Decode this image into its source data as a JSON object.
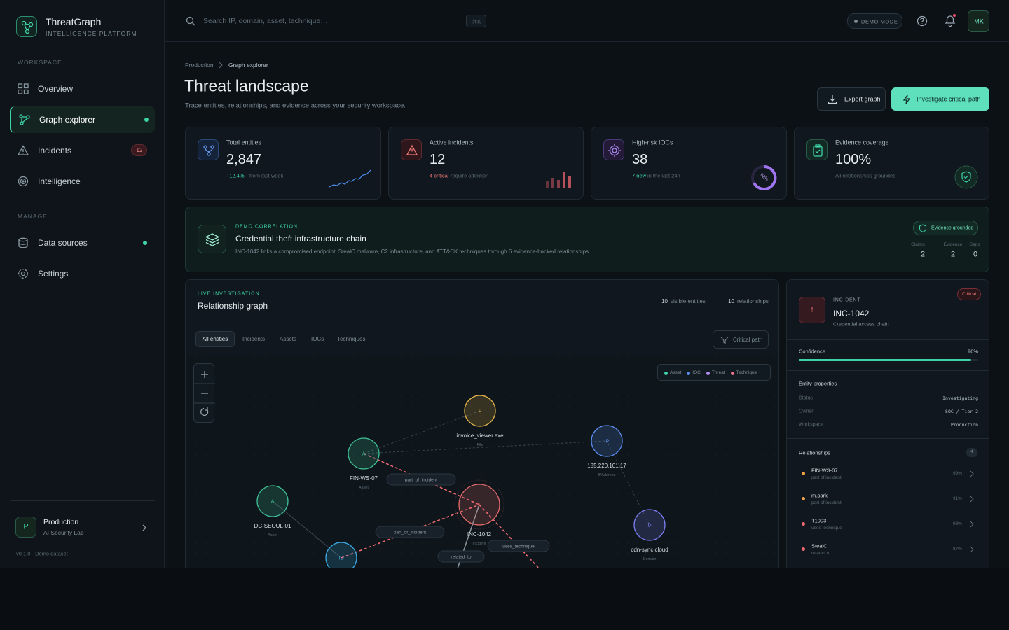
{
  "sidebar": {
    "brand": {
      "name": "ThreatGraph",
      "tagline": "INTELLIGENCE PLATFORM"
    },
    "sections": [
      {
        "label": "WORKSPACE",
        "items": [
          {
            "label": "Overview"
          },
          {
            "label": "Graph explorer"
          },
          {
            "label": "Incidents",
            "badge": 12
          },
          {
            "label": "Intelligence"
          }
        ]
      },
      {
        "label": "MANAGE",
        "items": [
          {
            "label": "Data sources"
          },
          {
            "label": "Settings"
          }
        ]
      }
    ],
    "workspace": {
      "initial": "P",
      "name": "Production",
      "org": "AI Security Lab"
    },
    "version": "v0.1.0 · Demo dataset"
  },
  "topbar": {
    "search_placeholder": "Search IP, domain, asset, technique…",
    "shortcut": "⌘K",
    "mode": "DEMO MODE",
    "avatar": "MK"
  },
  "header": {
    "breadcrumb": [
      "Production",
      "Graph explorer"
    ],
    "title": "Threat landscape",
    "subtitle": "Trace entities, relationships, and evidence across your security workspace.",
    "actions": [
      "Export graph",
      "Investigate critical path"
    ]
  },
  "stats": [
    {
      "label": "Total entities",
      "value": "2,847",
      "highlight": "+12.4%",
      "note": "from last week"
    },
    {
      "label": "Active incidents",
      "value": "12",
      "highlight": "4 critical",
      "note": "require attention"
    },
    {
      "label": "High-risk IOCs",
      "value": "38",
      "highlight": "7 new",
      "note": "in the last 24h",
      "ring": "62%"
    },
    {
      "label": "Evidence coverage",
      "value": "100%",
      "note": "All relationships grounded"
    }
  ],
  "correlation": {
    "eyebrow": "DEMO CORRELATION",
    "title": "Credential theft infrastructure chain",
    "description": "INC-1042 links a compromised endpoint, StealC malware, C2 infrastructure, and ATT&CK techniques through 6 evidence-backed relationships.",
    "badge": "Evidence grounded",
    "metrics": [
      {
        "label": "Claims",
        "value": 2
      },
      {
        "label": "Evidence",
        "value": 2
      },
      {
        "label": "Gaps",
        "value": 0
      }
    ]
  },
  "graph": {
    "eyebrow": "LIVE INVESTIGATION",
    "title": "Relationship graph",
    "visible_entities": 10,
    "visible_entities_label": "visible entities",
    "relationships": 10,
    "relationships_label": "relationships",
    "tabs": [
      "All entities",
      "Incidents",
      "Assets",
      "IOCs",
      "Techniques"
    ],
    "filter": "Critical path",
    "legend": [
      "Asset",
      "IOC",
      "Threat",
      "Technique"
    ],
    "nodes": [
      {
        "icon": "F",
        "label": "invoice_viewer.exe",
        "type": "File"
      },
      {
        "icon": "A",
        "label": "FIN-WS-07",
        "type": "Asset"
      },
      {
        "icon": "IP",
        "label": "185.220.101.17",
        "type": "IPAddress"
      },
      {
        "icon": "A",
        "label": "DC-SEOUL-01",
        "type": "Asset"
      },
      {
        "icon": "!",
        "label": "INC-1042",
        "type": "Incident"
      },
      {
        "icon": "D",
        "label": "cdn-sync.cloud",
        "type": "Domain"
      },
      {
        "icon": "ID"
      }
    ],
    "edges": [
      "part_of_incident",
      "part_of_incident",
      "uses_technique",
      "related_to"
    ]
  },
  "detail": {
    "eyebrow": "INCIDENT",
    "title": "INC-1042",
    "subtitle": "Credential access chain",
    "severity": "Critical",
    "confidence": {
      "label": "Confidence",
      "value": 96,
      "value_label": "96%"
    },
    "properties_title": "Entity properties",
    "properties": [
      [
        "Status",
        "Investigating"
      ],
      [
        "Owner",
        "SOC / Tier 2"
      ],
      [
        "Workspace",
        "Production"
      ]
    ],
    "relationships_title": "Relationships",
    "relationships_count": 4,
    "relationships": [
      {
        "name": "FIN-WS-07",
        "relation": "part of incident",
        "score": "99%"
      },
      {
        "name": "m.park",
        "relation": "part of incident",
        "score": "91%"
      },
      {
        "name": "T1003",
        "relation": "uses technique",
        "score": "93%"
      },
      {
        "name": "StealC",
        "relation": "related to",
        "score": "87%"
      }
    ]
  }
}
